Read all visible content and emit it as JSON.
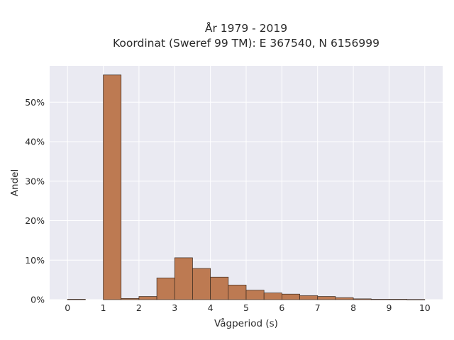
{
  "chart_data": {
    "type": "bar",
    "title_line1": "År 1979 - 2019",
    "title_line2": "Koordinat (Sweref 99 TM): E 367540, N 6156999",
    "xlabel": "Vågperiod (s)",
    "ylabel": "Andel",
    "xlim": [
      -0.5,
      10.5
    ],
    "ylim": [
      0,
      59.2
    ],
    "x_ticks": [
      0,
      1,
      2,
      3,
      4,
      5,
      6,
      7,
      8,
      9,
      10
    ],
    "y_ticks": [
      0,
      10,
      20,
      30,
      40,
      50
    ],
    "y_tick_labels": [
      "0%",
      "10%",
      "20%",
      "30%",
      "40%",
      "50%"
    ],
    "bin_width": 0.5,
    "bins_left": [
      0.0,
      0.5,
      1.0,
      1.5,
      2.0,
      2.5,
      3.0,
      3.5,
      4.0,
      4.5,
      5.0,
      5.5,
      6.0,
      6.5,
      7.0,
      7.5,
      8.0,
      8.5,
      9.0,
      9.5
    ],
    "values": [
      0.1,
      0.0,
      56.9,
      0.3,
      0.8,
      5.5,
      10.6,
      7.9,
      5.7,
      3.7,
      2.4,
      1.7,
      1.4,
      1.0,
      0.8,
      0.5,
      0.2,
      0.1,
      0.1,
      0.05
    ],
    "grid": true,
    "colors": {
      "bar_fill": "#bd7a52",
      "bar_stroke": "#3a2a20",
      "plot_bg": "#eaeaf2",
      "grid": "#ffffff"
    }
  }
}
